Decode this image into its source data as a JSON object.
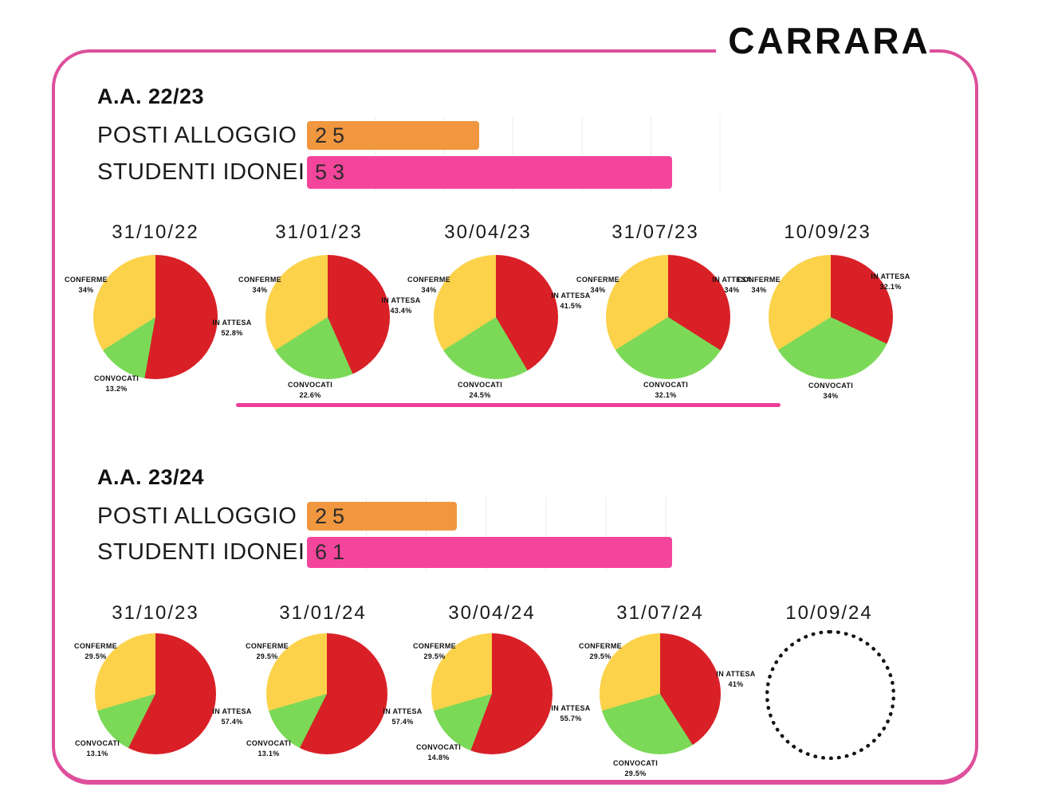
{
  "title": "CARRARA",
  "colors": {
    "frame_pink": "#dd4f9b",
    "divider_pink": "#ee3d98",
    "bar_orange": "#f0973f",
    "bar_pink": "#f4459c",
    "slice_red": "#d92027",
    "slice_green": "#7bd957",
    "slice_yellow": "#fcd24b",
    "gridline": "#ececec"
  },
  "chart_data": {
    "slice_colors": {
      "IN ATTESA": "#d92027",
      "CONVOCATI": "#7bd957",
      "CONFERME": "#fcd24b"
    },
    "slice_order_clockwise_from_top": [
      "IN ATTESA",
      "CONVOCATI",
      "CONFERME"
    ],
    "sections": [
      {
        "heading": "A.A. 22/23",
        "bar_chart": {
          "type": "bar",
          "categories": [
            "POSTI ALLOGGIO",
            "STUDENTI IDONEI"
          ],
          "values": [
            25,
            53
          ],
          "value_labels": [
            "25",
            "53"
          ],
          "colors": [
            "#f0973f",
            "#f4459c"
          ],
          "grid_step_units": 10
        },
        "pies": [
          {
            "type": "pie",
            "date": "31/10/22",
            "slices": [
              {
                "label": "CONFERME",
                "pct": 34,
                "display": "34%"
              },
              {
                "label": "CONVOCATI",
                "pct": 13.2,
                "display": "13.2%"
              },
              {
                "label": "IN ATTESA",
                "pct": 52.8,
                "display": "52.8%"
              }
            ]
          },
          {
            "type": "pie",
            "date": "31/01/23",
            "slices": [
              {
                "label": "CONFERME",
                "pct": 34,
                "display": "34%"
              },
              {
                "label": "CONVOCATI",
                "pct": 22.6,
                "display": "22.6%"
              },
              {
                "label": "IN ATTESA",
                "pct": 43.4,
                "display": "43.4%"
              }
            ]
          },
          {
            "type": "pie",
            "date": "30/04/23",
            "slices": [
              {
                "label": "CONFERME",
                "pct": 34,
                "display": "34%"
              },
              {
                "label": "CONVOCATI",
                "pct": 24.5,
                "display": "24.5%"
              },
              {
                "label": "IN ATTESA",
                "pct": 41.5,
                "display": "41.5%"
              }
            ]
          },
          {
            "type": "pie",
            "date": "31/07/23",
            "slices": [
              {
                "label": "CONFERME",
                "pct": 34,
                "display": "34%"
              },
              {
                "label": "CONVOCATI",
                "pct": 32.1,
                "display": "32.1%"
              },
              {
                "label": "IN ATTESA",
                "pct": 34,
                "display": "34%"
              }
            ]
          },
          {
            "type": "pie",
            "date": "10/09/23",
            "slices": [
              {
                "label": "CONFERME",
                "pct": 34,
                "display": "34%"
              },
              {
                "label": "CONVOCATI",
                "pct": 34,
                "display": "34%"
              },
              {
                "label": "IN ATTESA",
                "pct": 32.1,
                "display": "32.1%"
              }
            ]
          }
        ]
      },
      {
        "heading": "A.A. 23/24",
        "bar_chart": {
          "type": "bar",
          "categories": [
            "POSTI ALLOGGIO",
            "STUDENTI IDONEI"
          ],
          "values": [
            25,
            61
          ],
          "value_labels": [
            "25",
            "61"
          ],
          "colors": [
            "#f0973f",
            "#f4459c"
          ],
          "grid_step_units": 10
        },
        "pies": [
          {
            "type": "pie",
            "date": "31/10/23",
            "slices": [
              {
                "label": "CONFERME",
                "pct": 29.5,
                "display": "29.5%"
              },
              {
                "label": "CONVOCATI",
                "pct": 13.1,
                "display": "13.1%"
              },
              {
                "label": "IN ATTESA",
                "pct": 57.4,
                "display": "57.4%"
              }
            ]
          },
          {
            "type": "pie",
            "date": "31/01/24",
            "slices": [
              {
                "label": "CONFERME",
                "pct": 29.5,
                "display": "29.5%"
              },
              {
                "label": "CONVOCATI",
                "pct": 13.1,
                "display": "13.1%"
              },
              {
                "label": "IN ATTESA",
                "pct": 57.4,
                "display": "57.4%"
              }
            ]
          },
          {
            "type": "pie",
            "date": "30/04/24",
            "slices": [
              {
                "label": "CONFERME",
                "pct": 29.5,
                "display": "29.5%"
              },
              {
                "label": "CONVOCATI",
                "pct": 14.8,
                "display": "14.8%"
              },
              {
                "label": "IN ATTESA",
                "pct": 55.7,
                "display": "55.7%"
              }
            ]
          },
          {
            "type": "pie",
            "date": "31/07/24",
            "slices": [
              {
                "label": "CONFERME",
                "pct": 29.5,
                "display": "29.5%"
              },
              {
                "label": "CONVOCATI",
                "pct": 29.5,
                "display": "29.5%"
              },
              {
                "label": "IN ATTESA",
                "pct": 41,
                "display": "41%"
              }
            ]
          },
          {
            "type": "placeholder",
            "date": "10/09/24"
          }
        ]
      }
    ]
  }
}
